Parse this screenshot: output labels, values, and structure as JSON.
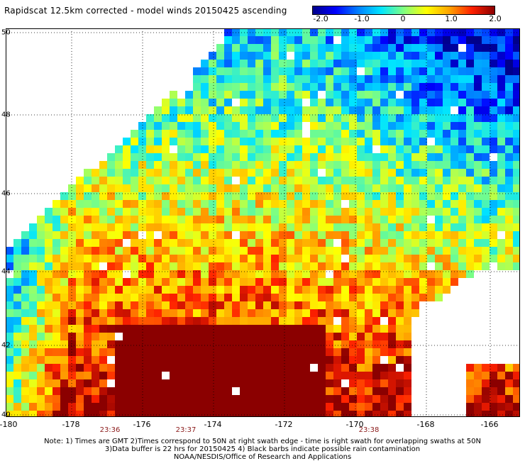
{
  "title": "Rapidscat 12.5km corrected - model winds 20150425 ascending",
  "colorbar": {
    "labels": [
      "-2.0",
      "-1.0",
      "0",
      "1.0",
      "2.0"
    ],
    "stops": [
      "#00008b",
      "#0000ff",
      "#0080ff",
      "#00e5ff",
      "#80ff80",
      "#ffff00",
      "#ffa500",
      "#ff2000",
      "#8b0000"
    ]
  },
  "map": {
    "lat_labels": [
      "50",
      "48",
      "46",
      "44",
      "42",
      "40"
    ],
    "lon_labels": [
      "-180",
      "-178",
      "-176",
      "-174",
      "-172",
      "-170",
      "-168",
      "-166"
    ],
    "time_labels": [
      "23:36",
      "23:37",
      "23:38"
    ]
  },
  "notes": {
    "line1": "Note: 1) Times are GMT 2)Times correspond to 50N at right swath edge - time is right swath for overlapping swaths at 50N",
    "line2": "3)Data buffer is 22 hrs for 20150425 4) Black barbs indicate possible rain contamination",
    "line3": "NOAA/NESDIS/Office of Research and Applications"
  }
}
